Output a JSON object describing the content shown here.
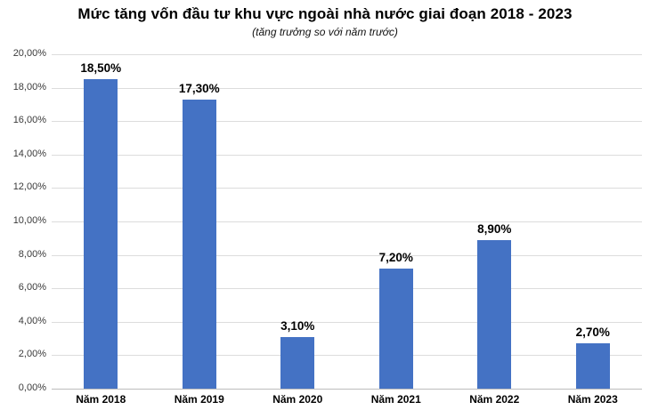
{
  "chart_data": {
    "type": "bar",
    "title": "Mức tăng vốn đầu tư khu vực ngoài nhà nước giai đoạn 2018 - 2023",
    "subtitle": "(tăng trưởng so với năm trước)",
    "categories": [
      "Năm 2018",
      "Năm 2019",
      "Năm 2020",
      "Năm 2021",
      "Năm 2022",
      "Năm 2023"
    ],
    "values": [
      18.5,
      17.3,
      3.1,
      7.2,
      8.9,
      2.7
    ],
    "value_labels": [
      "18,50%",
      "17,30%",
      "3,10%",
      "7,20%",
      "8,90%",
      "2,70%"
    ],
    "y_tick_labels": [
      "0,00%",
      "2,00%",
      "4,00%",
      "6,00%",
      "8,00%",
      "10,00%",
      "12,00%",
      "14,00%",
      "16,00%",
      "18,00%",
      "20,00%"
    ],
    "ylim": [
      0,
      20
    ],
    "y_step": 2,
    "xlabel": "",
    "ylabel": "",
    "grid": true,
    "legend": "none",
    "bar_color": "#4472c4",
    "gridline_color": "#dcdcdc",
    "baseline_color": "#bdbdbd",
    "label_color": "#000000"
  }
}
